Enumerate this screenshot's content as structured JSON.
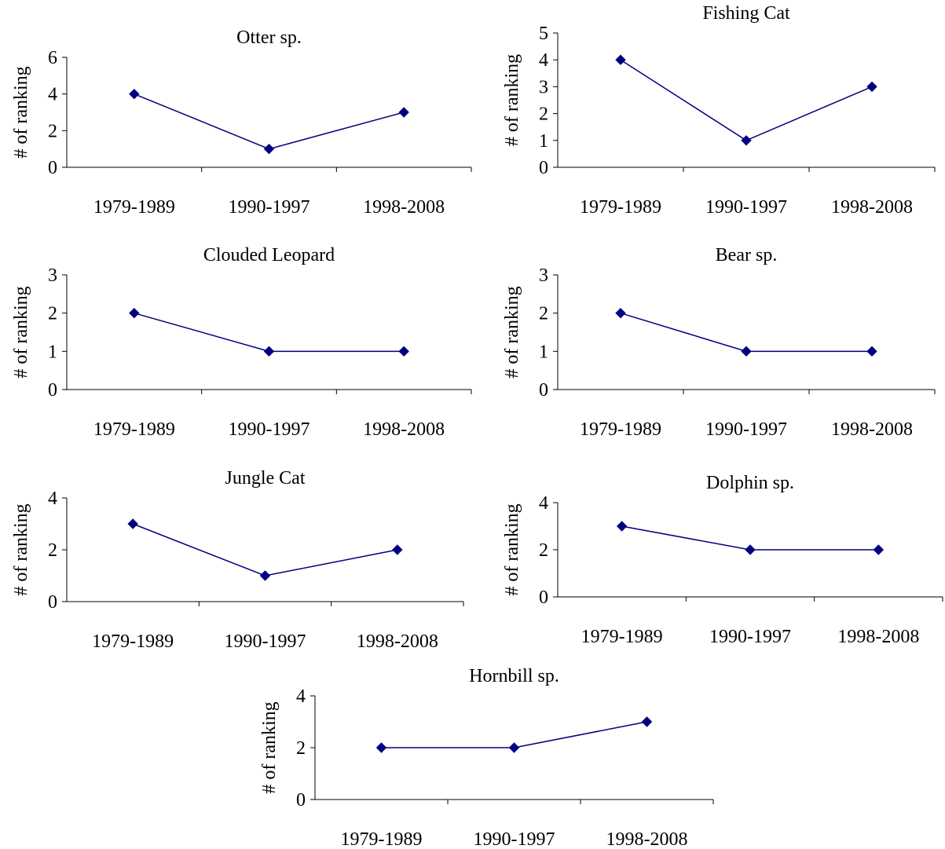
{
  "figure": {
    "line_color": "#000080",
    "marker_color": "#000080",
    "marker": "diamond"
  },
  "chart_data": [
    {
      "type": "line",
      "title": "Otter sp.",
      "ylabel": "# of ranking",
      "xlabel": "",
      "categories": [
        "1979-1989",
        "1990-1997",
        "1998-2008"
      ],
      "values": [
        4,
        1,
        3
      ],
      "ylim": [
        0,
        6
      ],
      "yticks": [
        0,
        2,
        4,
        6
      ],
      "grid": false,
      "legend": "none"
    },
    {
      "type": "line",
      "title": "Fishing Cat",
      "ylabel": "# of ranking",
      "xlabel": "",
      "categories": [
        "1979-1989",
        "1990-1997",
        "1998-2008"
      ],
      "values": [
        4,
        1,
        3
      ],
      "ylim": [
        0,
        5
      ],
      "yticks": [
        0,
        1,
        2,
        3,
        4,
        5
      ],
      "grid": false,
      "legend": "none"
    },
    {
      "type": "line",
      "title": "Clouded Leopard",
      "ylabel": "# of ranking",
      "xlabel": "",
      "categories": [
        "1979-1989",
        "1990-1997",
        "1998-2008"
      ],
      "values": [
        2,
        1,
        1
      ],
      "ylim": [
        0,
        3
      ],
      "yticks": [
        0,
        1,
        2,
        3
      ],
      "grid": false,
      "legend": "none"
    },
    {
      "type": "line",
      "title": "Bear sp.",
      "ylabel": "# of ranking",
      "xlabel": "",
      "categories": [
        "1979-1989",
        "1990-1997",
        "1998-2008"
      ],
      "values": [
        2,
        1,
        1
      ],
      "ylim": [
        0,
        3
      ],
      "yticks": [
        0,
        1,
        2,
        3
      ],
      "grid": false,
      "legend": "none"
    },
    {
      "type": "line",
      "title": "Jungle Cat",
      "ylabel": "# of ranking",
      "xlabel": "",
      "categories": [
        "1979-1989",
        "1990-1997",
        "1998-2008"
      ],
      "values": [
        3,
        1,
        2
      ],
      "ylim": [
        0,
        4
      ],
      "yticks": [
        0,
        2,
        4
      ],
      "grid": false,
      "legend": "none"
    },
    {
      "type": "line",
      "title": "Dolphin sp.",
      "ylabel": "# of ranking",
      "xlabel": "",
      "categories": [
        "1979-1989",
        "1990-1997",
        "1998-2008"
      ],
      "values": [
        3,
        2,
        2
      ],
      "ylim": [
        0,
        4
      ],
      "yticks": [
        0,
        2,
        4
      ],
      "grid": false,
      "legend": "none"
    },
    {
      "type": "line",
      "title": "Hornbill sp.",
      "ylabel": "# of ranking",
      "xlabel": "",
      "categories": [
        "1979-1989",
        "1990-1997",
        "1998-2008"
      ],
      "values": [
        2,
        2,
        3
      ],
      "ylim": [
        0,
        4
      ],
      "yticks": [
        0,
        2,
        4
      ],
      "grid": false,
      "legend": "none"
    }
  ]
}
